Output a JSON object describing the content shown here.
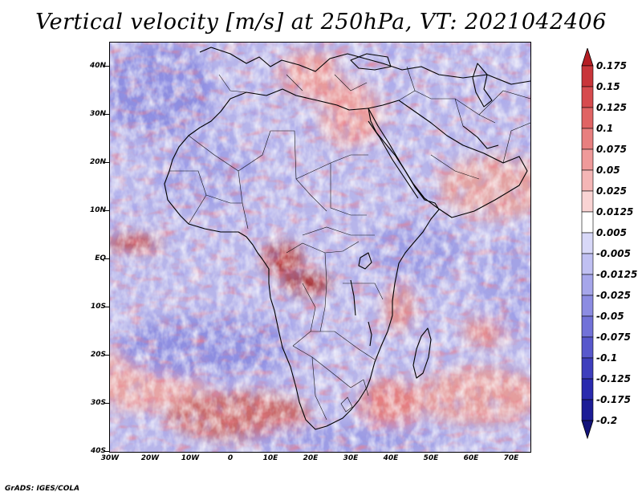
{
  "title": "Vertical velocity [m/s] at 250hPa, VT: 2021042406",
  "map": {
    "lat_ticks": [
      "40N",
      "30N",
      "20N",
      "10N",
      "EQ",
      "10S",
      "20S",
      "30S",
      "40S"
    ],
    "lon_ticks": [
      "30W",
      "20W",
      "10W",
      "0",
      "10E",
      "20E",
      "30E",
      "40E",
      "50E",
      "60E",
      "70E"
    ],
    "lat_range": [
      -40,
      45
    ],
    "lon_range": [
      -30,
      75
    ]
  },
  "colorbar": {
    "labels": [
      "0.175",
      "0.15",
      "0.125",
      "0.1",
      "0.075",
      "0.05",
      "0.025",
      "0.0125",
      "0.005",
      "-0.005",
      "-0.0125",
      "-0.025",
      "-0.05",
      "-0.075",
      "-0.1",
      "-0.125",
      "-0.175",
      "-0.2"
    ],
    "colors": [
      "#b41d23",
      "#c8353a",
      "#d64b4e",
      "#e06464",
      "#e87f7f",
      "#ef9a9a",
      "#f4b6b6",
      "#f9d3d3",
      "#ffffff",
      "#d8d8f8",
      "#c0c0f2",
      "#a6a6ea",
      "#8c8ce2",
      "#7272d8",
      "#5858cc",
      "#3e3ebd",
      "#2a2aae",
      "#1c1c96",
      "#12127a"
    ]
  },
  "credit": "GrADS: IGES/COLA"
}
